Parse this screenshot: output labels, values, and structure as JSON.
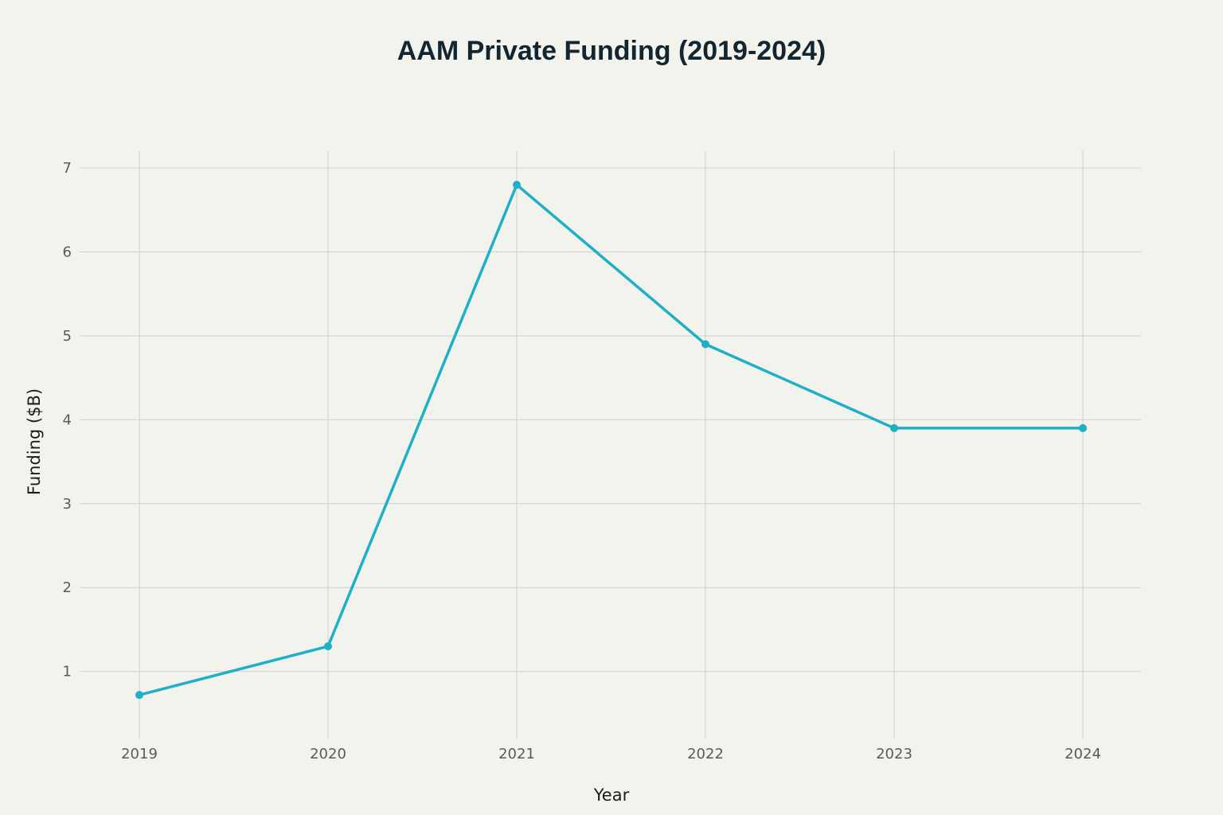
{
  "chart_data": {
    "type": "line",
    "title": "AAM Private Funding (2019-2024)",
    "xlabel": "Year",
    "ylabel": "Funding ($B)",
    "categories": [
      "2019",
      "2020",
      "2021",
      "2022",
      "2023",
      "2024"
    ],
    "series": [
      {
        "values": [
          0.72,
          1.3,
          6.8,
          4.9,
          3.9,
          3.9
        ],
        "color": "#1fb0c6"
      }
    ],
    "ylim": [
      0.2,
      7.2
    ],
    "yticks": [
      1,
      2,
      3,
      4,
      5,
      6,
      7
    ],
    "ytick_labels": [
      "1",
      "2",
      "3",
      "4",
      "5",
      "6",
      "7"
    ],
    "grid": true,
    "legend": false,
    "markers": true
  }
}
